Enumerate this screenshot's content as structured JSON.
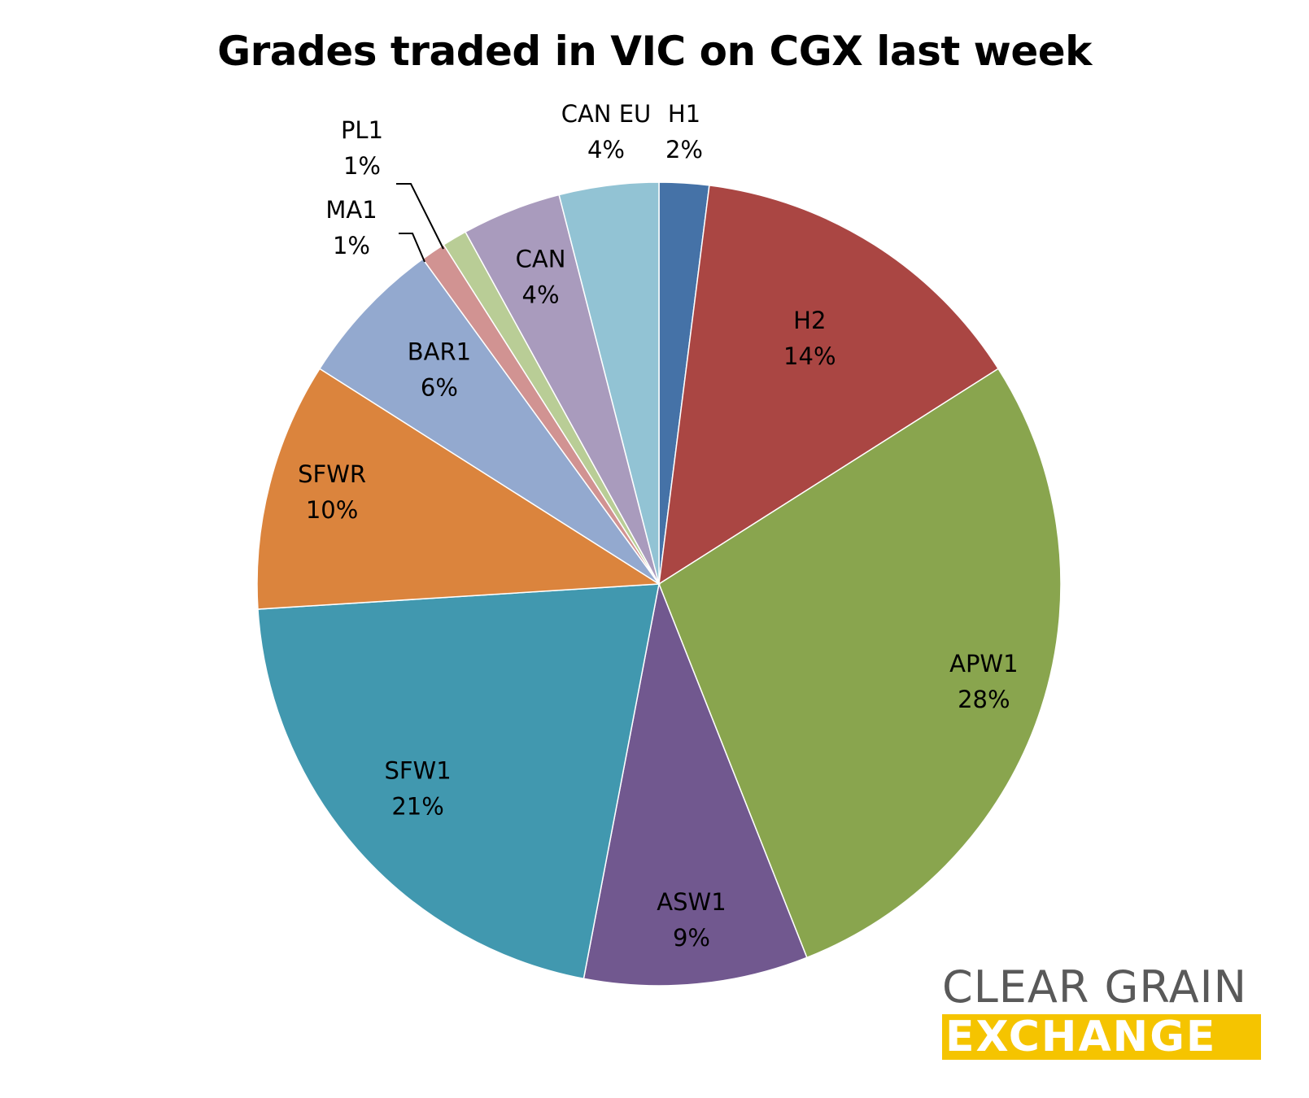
{
  "chart_data": {
    "type": "pie",
    "title": "Grades traded in VIC on CGX last week",
    "start_angle": "12 o'clock, clockwise",
    "slices": [
      {
        "label": "H1",
        "value": 2,
        "display": "2%",
        "color": "#4572a7"
      },
      {
        "label": "H2",
        "value": 14,
        "display": "14%",
        "color": "#aa4643"
      },
      {
        "label": "APW1",
        "value": 28,
        "display": "28%",
        "color": "#89a54e"
      },
      {
        "label": "ASW1",
        "value": 9,
        "display": "9%",
        "color": "#71588f"
      },
      {
        "label": "SFW1",
        "value": 21,
        "display": "21%",
        "color": "#4198af"
      },
      {
        "label": "SFWR",
        "value": 10,
        "display": "10%",
        "color": "#db843d"
      },
      {
        "label": "BAR1",
        "value": 6,
        "display": "6%",
        "color": "#93a9cf"
      },
      {
        "label": "MA1",
        "value": 1,
        "display": "1%",
        "color": "#d19392"
      },
      {
        "label": "PL1",
        "value": 1,
        "display": "1%",
        "color": "#b9cd96"
      },
      {
        "label": "CAN",
        "value": 4,
        "display": "4%",
        "color": "#a99bbd"
      },
      {
        "label": "CAN EU",
        "value": 4,
        "display": "4%",
        "color": "#92c3d4"
      }
    ]
  },
  "logo": {
    "line1": "CLEAR GRAIN",
    "line2": "EXCHANGE",
    "text_color": "#595959",
    "band_color": "#f5c400"
  }
}
